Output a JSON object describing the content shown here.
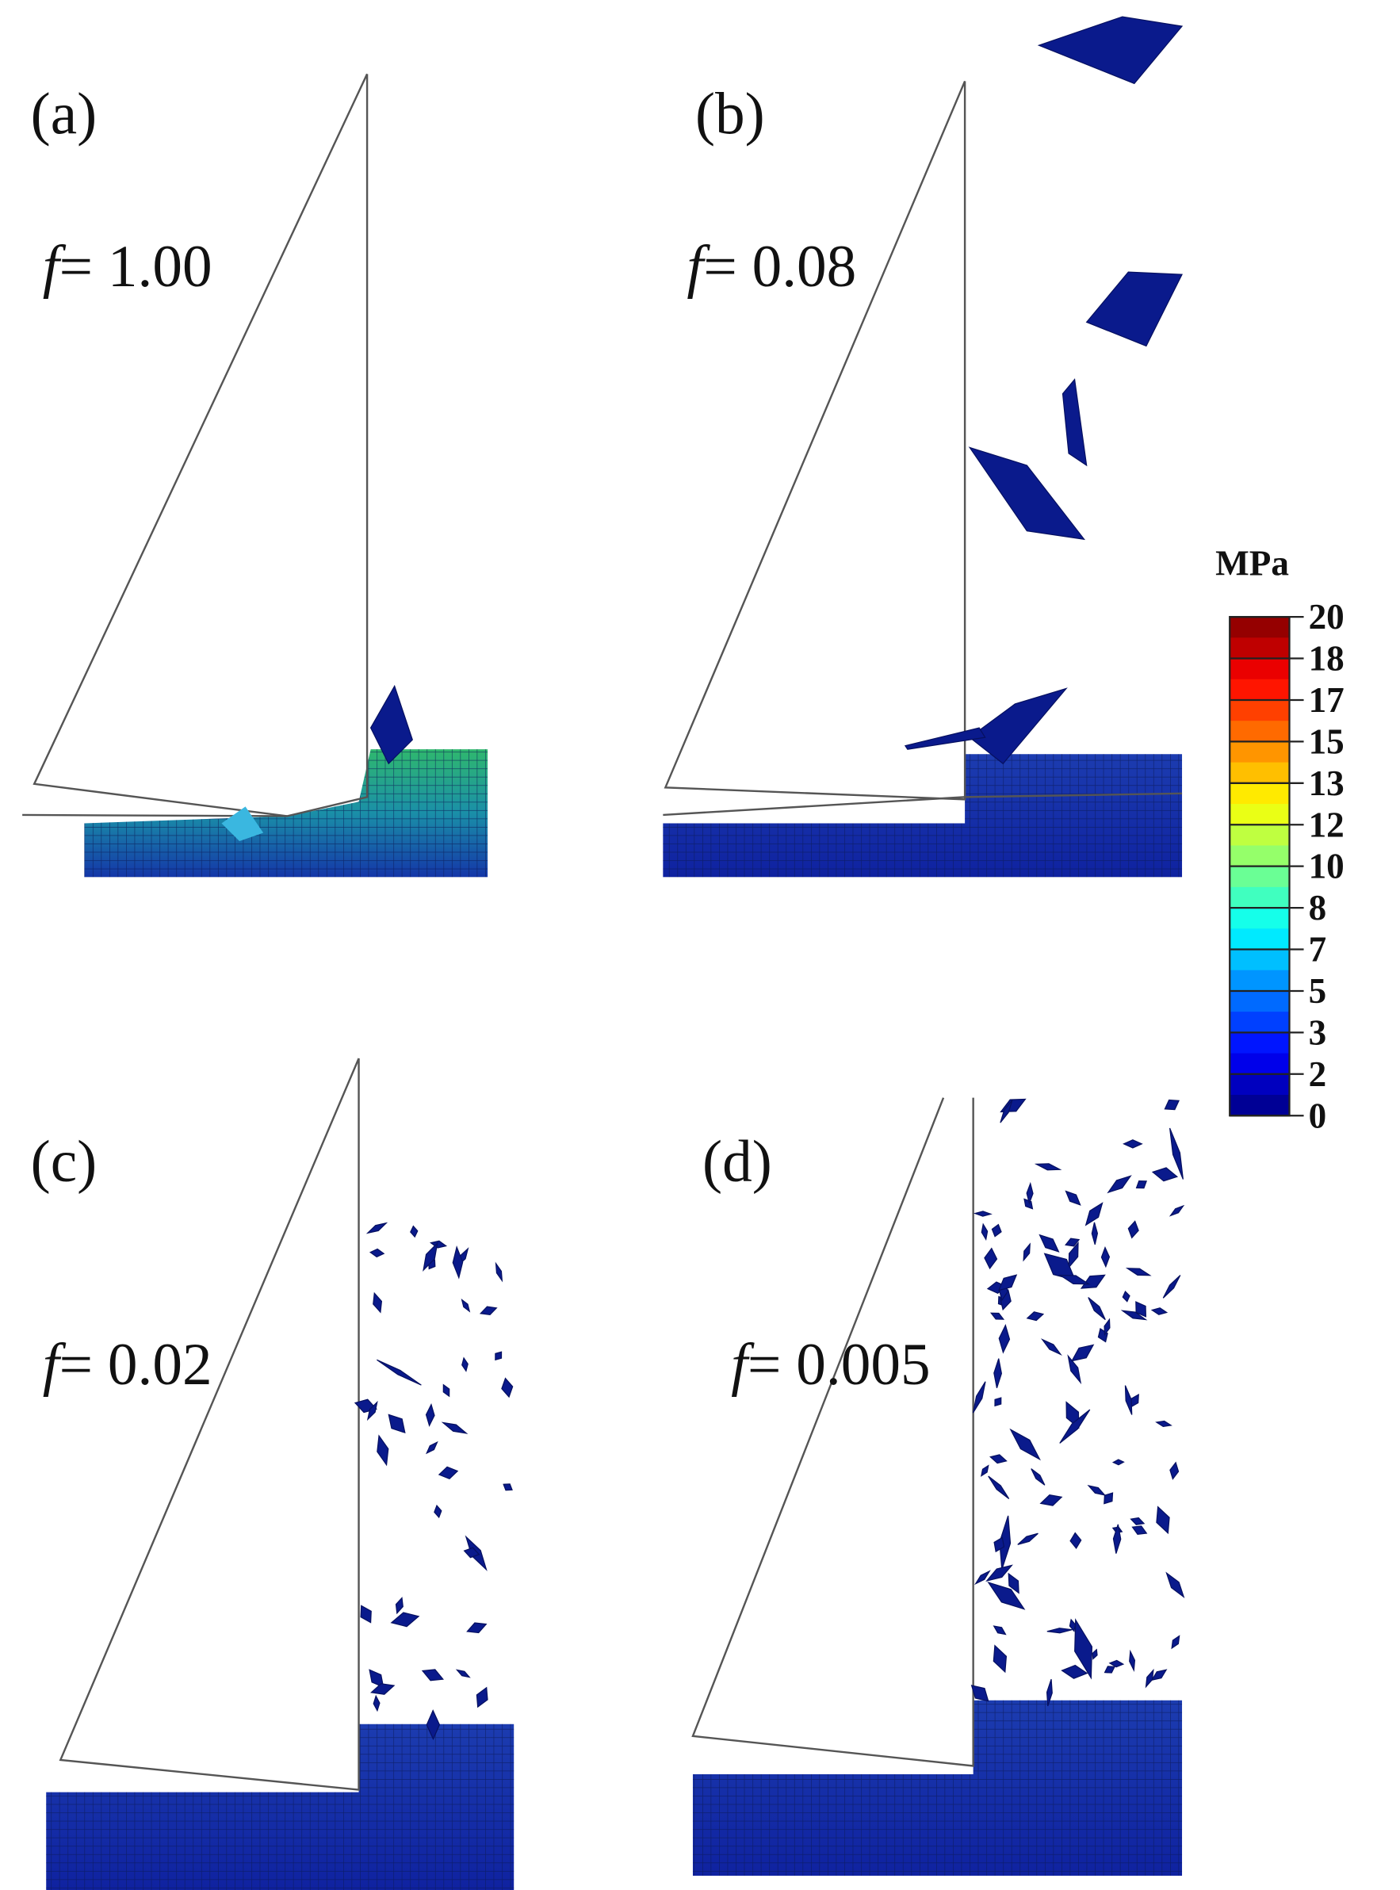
{
  "panels": [
    {
      "label": "(a)",
      "symbol": "f",
      "value": "= 1.00"
    },
    {
      "label": "(b)",
      "symbol": "f",
      "value": "= 0.08"
    },
    {
      "label": "(c)",
      "symbol": "f",
      "value": "= 0.02"
    },
    {
      "label": "(d)",
      "symbol": "f",
      "value": "= 0.005"
    }
  ],
  "colorbar": {
    "unit": "MPa",
    "ticks": [
      20,
      18,
      17,
      15,
      13,
      12,
      10,
      8,
      7,
      5,
      3,
      2,
      0
    ]
  }
}
